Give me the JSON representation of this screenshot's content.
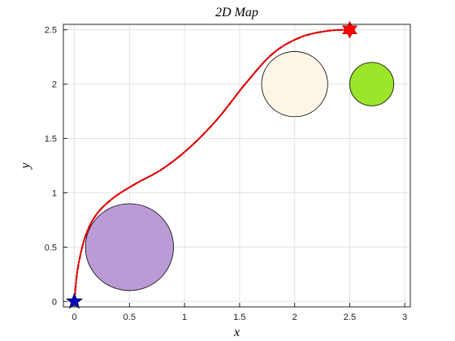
{
  "chart_data": {
    "type": "scatter",
    "title": "2D Map",
    "xlabel": "x",
    "ylabel": "y",
    "xlim": [
      -0.1,
      3.05
    ],
    "ylim": [
      -0.05,
      2.55
    ],
    "grid": true,
    "x_ticks": [
      "0",
      "0.5",
      "1",
      "1.5",
      "2",
      "2.5",
      "3"
    ],
    "y_ticks": [
      "0",
      "0.5",
      "1",
      "1.5",
      "2",
      "2.5"
    ],
    "obstacles": [
      {
        "name": "purple-obstacle",
        "x": 0.5,
        "y": 0.5,
        "r": 0.4,
        "color": "#bb9bd6"
      },
      {
        "name": "cream-obstacle",
        "x": 2.0,
        "y": 2.0,
        "r": 0.3,
        "color": "#fdf6e8"
      },
      {
        "name": "green-obstacle",
        "x": 2.7,
        "y": 2.0,
        "r": 0.2,
        "color": "#9be52a"
      }
    ],
    "start": {
      "x": 0,
      "y": 0,
      "color": "#0000cc"
    },
    "goal": {
      "x": 2.5,
      "y": 2.5,
      "color": "#ff0000"
    },
    "path": {
      "color": "#dd0000",
      "points": [
        [
          0.0,
          0.0
        ],
        [
          0.03,
          0.3
        ],
        [
          0.1,
          0.6
        ],
        [
          0.2,
          0.8
        ],
        [
          0.35,
          0.95
        ],
        [
          0.55,
          1.08
        ],
        [
          0.8,
          1.22
        ],
        [
          1.05,
          1.42
        ],
        [
          1.3,
          1.68
        ],
        [
          1.55,
          2.0
        ],
        [
          1.8,
          2.28
        ],
        [
          2.05,
          2.43
        ],
        [
          2.3,
          2.49
        ],
        [
          2.5,
          2.5
        ]
      ]
    }
  }
}
